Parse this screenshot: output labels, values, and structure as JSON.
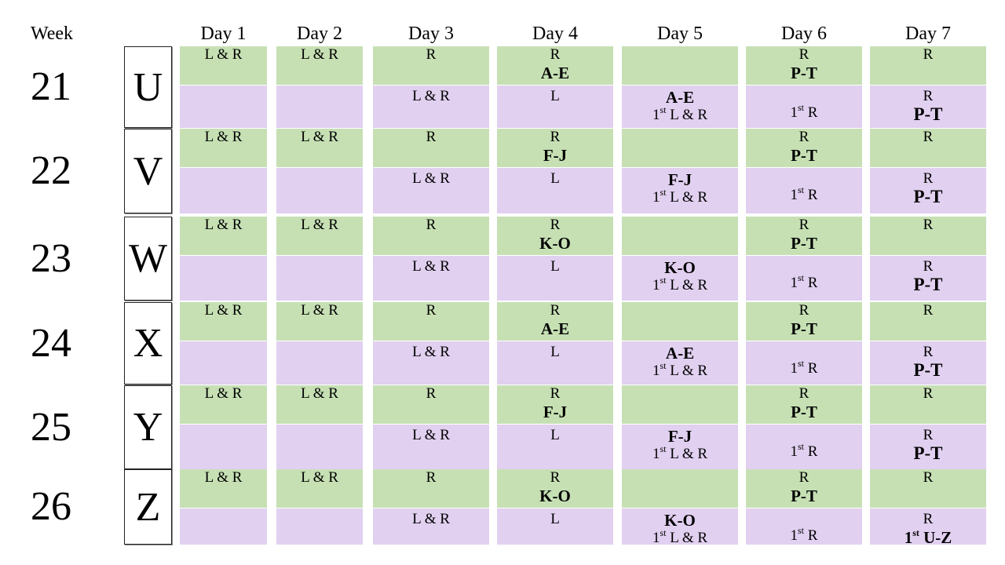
{
  "header": {
    "week_label": "Week",
    "days": [
      "Day 1",
      "Day 2",
      "Day 3",
      "Day 4",
      "Day 5",
      "Day 6",
      "Day 7"
    ]
  },
  "colors": {
    "top_row": "#c6e0b4",
    "bottom_row": "#e1d0f0"
  },
  "weeks": [
    {
      "number": "21",
      "letter": "U",
      "group": "A-E",
      "day7_bottom": "P-T"
    },
    {
      "number": "22",
      "letter": "V",
      "group": "F-J",
      "day7_bottom": "P-T"
    },
    {
      "number": "23",
      "letter": "W",
      "group": "K-O",
      "day7_bottom": "P-T"
    },
    {
      "number": "24",
      "letter": "X",
      "group": "A-E",
      "day7_bottom": "P-T"
    },
    {
      "number": "25",
      "letter": "Y",
      "group": "F-J",
      "day7_bottom": "P-T"
    },
    {
      "number": "26",
      "letter": "Z",
      "group": "K-O",
      "day7_bottom": "1st U-Z"
    }
  ],
  "labels": {
    "l_and_r": "L & R",
    "r": "R",
    "l": "L",
    "pt": "P-T",
    "first_sup": "st",
    "first_num": "1",
    "first_l_and_r_rest": " L & R",
    "first_r_rest": " R",
    "first_uz_rest": " U-Z"
  }
}
